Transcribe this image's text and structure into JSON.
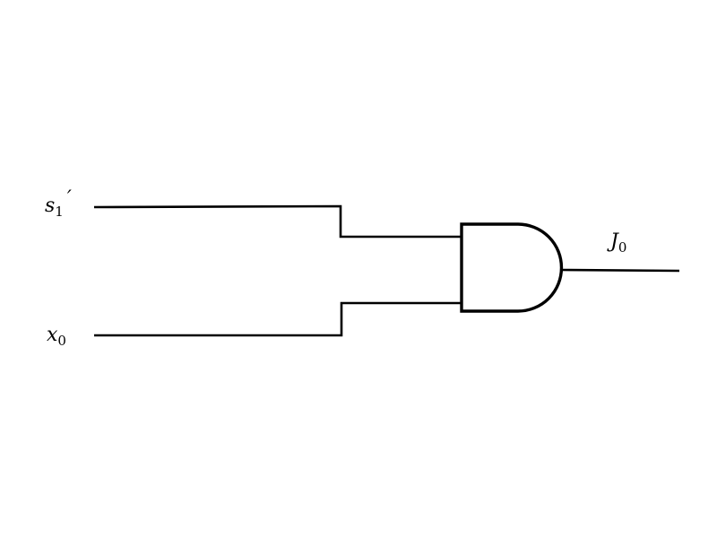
{
  "diagram": {
    "gate_type": "AND",
    "inputs": [
      {
        "name": "s",
        "subscript": "1",
        "suffix": "′"
      },
      {
        "name": "x",
        "subscript": "0",
        "suffix": ""
      }
    ],
    "output": {
      "name": "J",
      "subscript": "0"
    }
  }
}
